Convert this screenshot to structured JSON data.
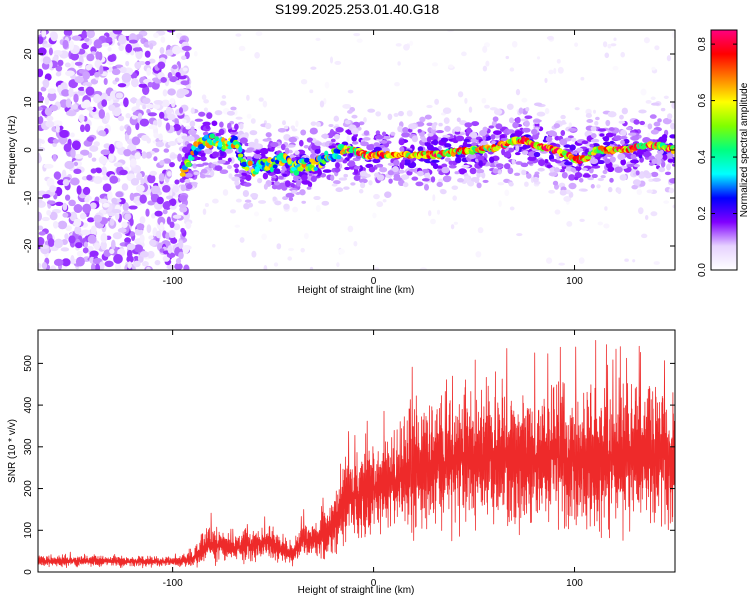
{
  "title": "S199.2025.253.01.40.G18",
  "chart_data": [
    {
      "type": "heatmap",
      "title": "S199.2025.253.01.40.G18",
      "xlabel": "Height of straight line (km)",
      "ylabel": "Frequency (Hz)",
      "xlim": [
        -167,
        150
      ],
      "ylim": [
        -25,
        25
      ],
      "xticks": [
        -100,
        0,
        100
      ],
      "yticks": [
        -20,
        -10,
        0,
        10,
        20
      ],
      "colorbar": {
        "label": "Normalized spectral amplitude",
        "range": [
          0,
          0.85
        ],
        "ticks": [
          0.0,
          0.2,
          0.4,
          0.6,
          0.8
        ],
        "tick_labels": [
          "0.0",
          "0.2",
          "0.4",
          "0.6",
          "0.8"
        ],
        "colors": [
          "#ffffff",
          "#e6d2ff",
          "#8000ff",
          "#0000ff",
          "#00ffff",
          "#00ff80",
          "#80ff00",
          "#ffff00",
          "#ff8000",
          "#ff0000",
          "#ff0080"
        ]
      },
      "ridge": {
        "x": [
          -167,
          -95,
          -90,
          -85,
          -80,
          -75,
          -70,
          -65,
          -60,
          -55,
          -50,
          -45,
          -40,
          -35,
          -30,
          -25,
          -20,
          -15,
          -10,
          -5,
          0,
          10,
          20,
          30,
          40,
          50,
          60,
          70,
          75,
          80,
          90,
          100,
          105,
          110,
          120,
          130,
          140,
          150
        ],
        "y": [
          0,
          -5,
          0,
          2,
          2,
          1,
          2,
          -3,
          -4,
          -3,
          -3,
          -2,
          -4,
          -3,
          -3,
          -2,
          -1,
          0,
          0,
          -1,
          -1,
          -1,
          -1,
          -1,
          -0.5,
          0,
          0.5,
          2,
          2,
          1,
          0,
          -2,
          -2,
          0,
          0,
          0.5,
          1,
          0
        ]
      }
    },
    {
      "type": "line",
      "title": "",
      "xlabel": "Height of straight line (km)",
      "ylabel": "SNR (10 * v/v)",
      "xlim": [
        -167,
        150
      ],
      "ylim": [
        0,
        580
      ],
      "xticks": [
        -100,
        0,
        100
      ],
      "yticks": [
        0,
        100,
        200,
        300,
        400,
        500
      ],
      "color": "#ee2a2a",
      "series": [
        {
          "name": "SNR",
          "x": [
            -167,
            -140,
            -120,
            -100,
            -90,
            -85,
            -80,
            -70,
            -60,
            -50,
            -45,
            -40,
            -35,
            -30,
            -25,
            -20,
            -15,
            -10,
            -5,
            0,
            10,
            20,
            30,
            40,
            50,
            60,
            70,
            80,
            90,
            100,
            110,
            120,
            130,
            140,
            150
          ],
          "mean": [
            25,
            27,
            25,
            25,
            30,
            55,
            65,
            55,
            65,
            70,
            50,
            45,
            75,
            70,
            85,
            110,
            170,
            180,
            190,
            200,
            215,
            235,
            260,
            265,
            270,
            275,
            275,
            275,
            275,
            270,
            270,
            270,
            275,
            275,
            280
          ],
          "spread": [
            12,
            12,
            12,
            10,
            15,
            35,
            40,
            25,
            35,
            35,
            25,
            25,
            40,
            30,
            50,
            60,
            90,
            100,
            110,
            110,
            120,
            130,
            140,
            145,
            150,
            150,
            150,
            150,
            150,
            150,
            150,
            145,
            150,
            150,
            150
          ]
        }
      ]
    }
  ]
}
